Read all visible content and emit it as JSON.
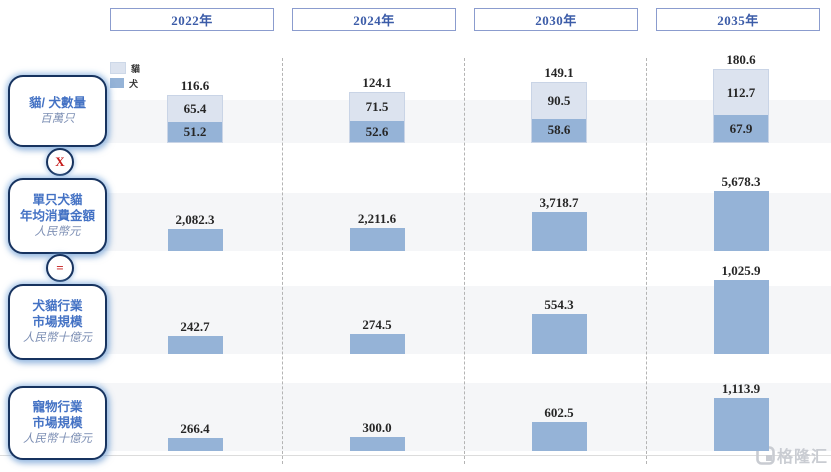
{
  "years": [
    "2022年",
    "2024年",
    "2030年",
    "2035年"
  ],
  "legend": {
    "items": [
      {
        "label": "貓",
        "color": "#dce3ef"
      },
      {
        "label": "犬",
        "color": "#95b3d7"
      }
    ]
  },
  "left_panel": {
    "boxes": [
      {
        "lines": [
          "貓/ 犬數量"
        ],
        "unit": "百萬只"
      },
      {
        "lines": [
          "單只犬貓",
          "年均消費金額"
        ],
        "unit": "人民幣元"
      },
      {
        "lines": [
          "犬貓行業",
          "市場規模"
        ],
        "unit": "人民幣十億元"
      },
      {
        "lines": [
          "寵物行業",
          "市場規模"
        ],
        "unit": "人民幣十億元"
      }
    ],
    "operators": [
      "X",
      "="
    ]
  },
  "watermark": {
    "text": "格隆汇"
  },
  "colors": {
    "bar_blue": "#95b3d7",
    "bar_light": "#dce3ef",
    "accent_blue": "#4472c4",
    "navy_border": "#17335f",
    "operator_red": "#c51a1a"
  },
  "chart_data": [
    {
      "type": "bar",
      "stacked": true,
      "title": "貓/ 犬數量 (百萬只)",
      "categories": [
        "2022年",
        "2024年",
        "2030年",
        "2035年"
      ],
      "series": [
        {
          "name": "貓",
          "color": "#dce3ef",
          "values": [
            65.4,
            71.5,
            90.5,
            112.7
          ]
        },
        {
          "name": "犬",
          "color": "#95b3d7",
          "values": [
            51.2,
            52.6,
            58.6,
            67.9
          ]
        }
      ],
      "totals": [
        116.6,
        124.1,
        149.1,
        180.6
      ],
      "total_labels": [
        "116.6",
        "124.1",
        "149.1",
        "180.6"
      ]
    },
    {
      "type": "bar",
      "title": "單只犬貓年均消費金額 (人民幣元)",
      "categories": [
        "2022年",
        "2024年",
        "2030年",
        "2035年"
      ],
      "values": [
        2082.3,
        2211.6,
        3718.7,
        5678.3
      ],
      "labels": [
        "2,082.3",
        "2,211.6",
        "3,718.7",
        "5,678.3"
      ]
    },
    {
      "type": "bar",
      "title": "犬貓行業市場規模 (人民幣十億元)",
      "categories": [
        "2022年",
        "2024年",
        "2030年",
        "2035年"
      ],
      "values": [
        242.7,
        274.5,
        554.3,
        1025.9
      ],
      "labels": [
        "242.7",
        "274.5",
        "554.3",
        "1,025.9"
      ]
    },
    {
      "type": "bar",
      "title": "寵物行業市場規模 (人民幣十億元)",
      "categories": [
        "2022年",
        "2024年",
        "2030年",
        "2035年"
      ],
      "values": [
        266.4,
        300.0,
        602.5,
        1113.9
      ],
      "labels": [
        "266.4",
        "300.0",
        "602.5",
        "1,113.9"
      ]
    }
  ]
}
